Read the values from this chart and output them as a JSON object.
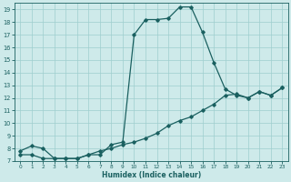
{
  "xlabel": "Humidex (Indice chaleur)",
  "xlim": [
    -0.5,
    23.5
  ],
  "ylim": [
    7,
    19.5
  ],
  "yticks": [
    7,
    8,
    9,
    10,
    11,
    12,
    13,
    14,
    15,
    16,
    17,
    18,
    19
  ],
  "xticks": [
    0,
    1,
    2,
    3,
    4,
    5,
    6,
    7,
    8,
    9,
    10,
    11,
    12,
    13,
    14,
    15,
    16,
    17,
    18,
    19,
    20,
    21,
    22,
    23
  ],
  "bg_color": "#ceeaea",
  "grid_color": "#9ecece",
  "line_color": "#1a6060",
  "line1_y": [
    7.8,
    8.2,
    8.0,
    7.2,
    7.2,
    7.2,
    7.5,
    7.5,
    8.3,
    8.5,
    17.0,
    18.2,
    18.2,
    18.3,
    19.2,
    19.2,
    17.2,
    14.8,
    12.7,
    12.2,
    12.0,
    12.5,
    12.2,
    12.8
  ],
  "line2_y": [
    7.5,
    7.5,
    7.2,
    7.2,
    7.2,
    7.2,
    7.5,
    7.8,
    8.0,
    8.3,
    8.5,
    8.8,
    9.2,
    9.8,
    10.2,
    10.5,
    11.0,
    11.5,
    12.2,
    12.3,
    12.0,
    12.5,
    12.2,
    12.8
  ]
}
